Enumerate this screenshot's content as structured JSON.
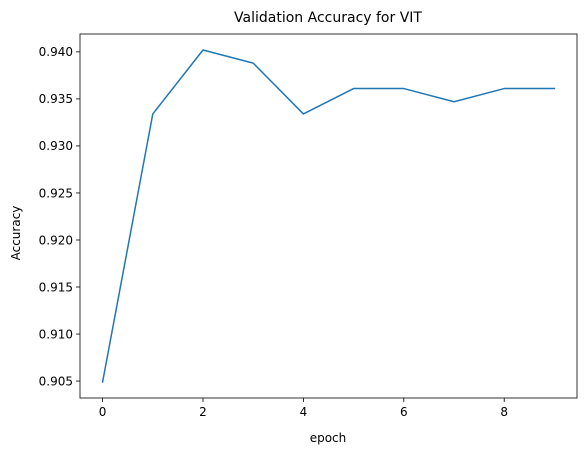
{
  "chart_data": {
    "type": "line",
    "title": "Validation Accuracy for VIT",
    "xlabel": "epoch",
    "ylabel": "Accuracy",
    "x": [
      0,
      1,
      2,
      3,
      4,
      5,
      6,
      7,
      8,
      9
    ],
    "series": [
      {
        "values": [
          0.9049,
          0.9334,
          0.9402,
          0.9388,
          0.9334,
          0.9361,
          0.9361,
          0.9347,
          0.9361,
          0.9361
        ],
        "color": "#1f77b4"
      }
    ],
    "xlim": [
      -0.45,
      9.45
    ],
    "ylim": [
      0.9032,
      0.9419
    ],
    "xticks": [
      0,
      2,
      4,
      6,
      8
    ],
    "xtick_labels": [
      "0",
      "2",
      "4",
      "6",
      "8"
    ],
    "yticks": [
      0.905,
      0.91,
      0.915,
      0.92,
      0.925,
      0.93,
      0.935,
      0.94
    ],
    "ytick_labels": [
      "0.905",
      "0.910",
      "0.915",
      "0.920",
      "0.925",
      "0.930",
      "0.935",
      "0.940"
    ],
    "grid": false,
    "legend": "none"
  }
}
